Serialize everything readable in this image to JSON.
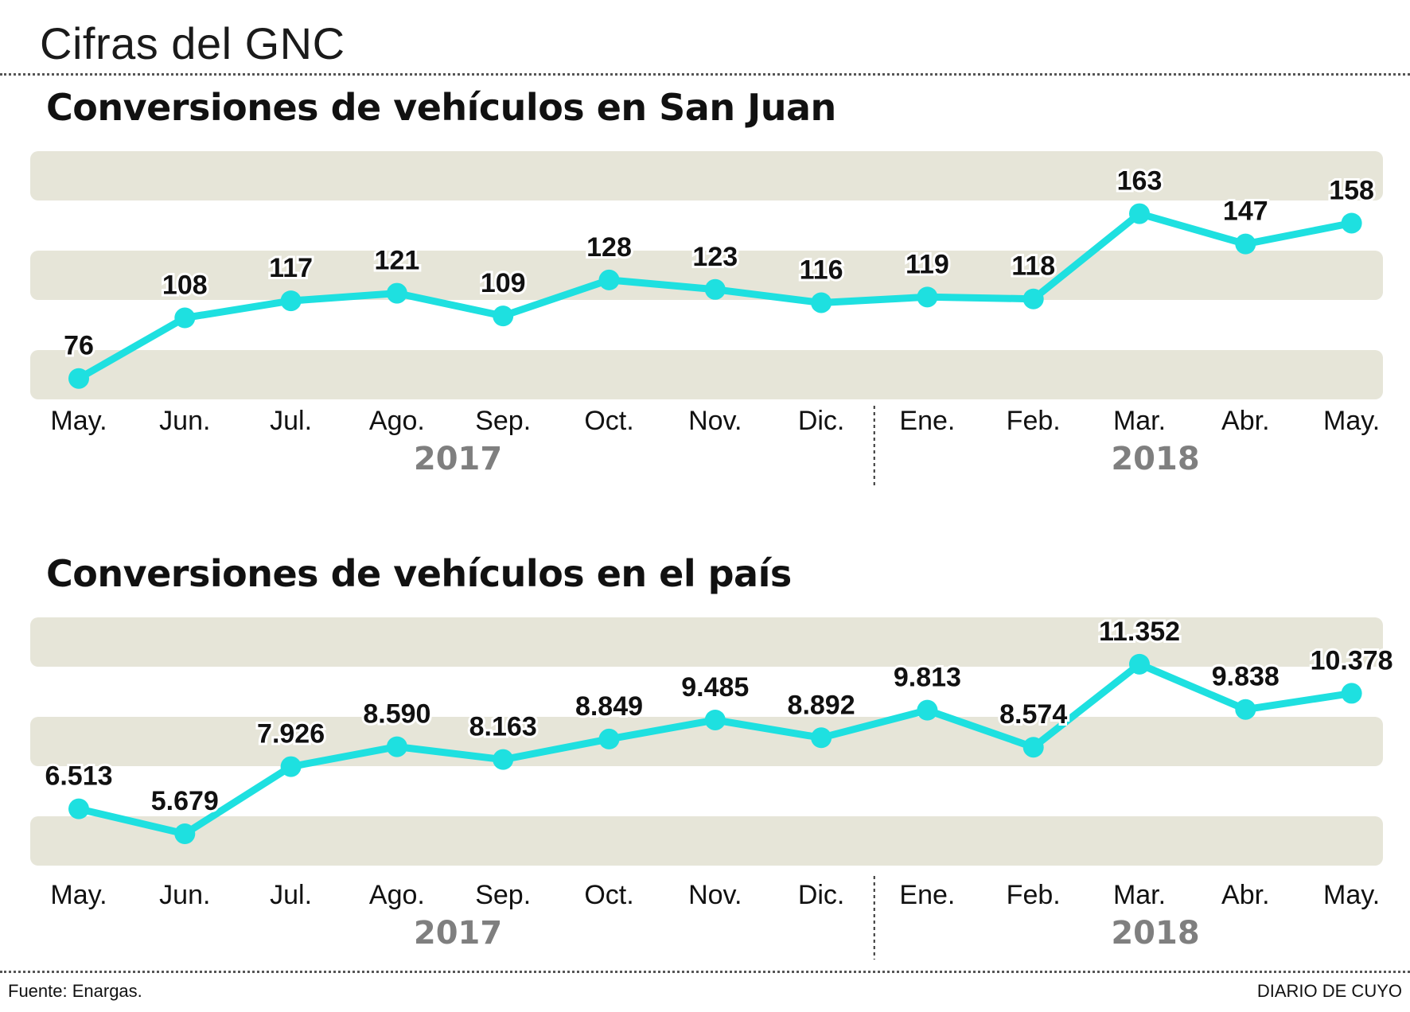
{
  "page": {
    "title": "Cifras del GNC",
    "source": "Fuente: Enargas.",
    "publisher": "DIARIO DE CUYO"
  },
  "colors": {
    "line": "#1ee0e0",
    "band": "#e6e5d8",
    "year_label": "#7f7f7f",
    "text": "#111111"
  },
  "chart_data": [
    {
      "type": "line",
      "title": "Conversiones de vehículos en San Juan",
      "categories": [
        "May.",
        "Jun.",
        "Jul.",
        "Ago.",
        "Sep.",
        "Oct.",
        "Nov.",
        "Dic.",
        "Ene.",
        "Feb.",
        "Mar.",
        "Abr.",
        "May."
      ],
      "years": [
        {
          "label": "2017",
          "from": 0,
          "to": 7
        },
        {
          "label": "2018",
          "from": 8,
          "to": 12
        }
      ],
      "series": [
        {
          "values": [
            76,
            108,
            117,
            121,
            109,
            128,
            123,
            116,
            119,
            118,
            163,
            147,
            158
          ]
        }
      ],
      "value_labels": [
        "76",
        "108",
        "117",
        "121",
        "109",
        "128",
        "123",
        "116",
        "119",
        "118",
        "163",
        "147",
        "158"
      ],
      "ylim": [
        70,
        175
      ]
    },
    {
      "type": "line",
      "title": "Conversiones de vehículos en el país",
      "categories": [
        "May.",
        "Jun.",
        "Jul.",
        "Ago.",
        "Sep.",
        "Oct.",
        "Nov.",
        "Dic.",
        "Ene.",
        "Feb.",
        "Mar.",
        "Abr.",
        "May."
      ],
      "years": [
        {
          "label": "2017",
          "from": 0,
          "to": 7
        },
        {
          "label": "2018",
          "from": 8,
          "to": 12
        }
      ],
      "series": [
        {
          "values": [
            6513,
            5679,
            7926,
            8590,
            8163,
            8849,
            9485,
            8892,
            9813,
            8574,
            11352,
            9838,
            10378
          ]
        }
      ],
      "value_labels": [
        "6.513",
        "5.679",
        "7.926",
        "8.590",
        "8.163",
        "8.849",
        "9.485",
        "8.892",
        "9.813",
        "8.574",
        "11.352",
        "9.838",
        "10.378"
      ],
      "ylim": [
        5200,
        11800
      ]
    }
  ]
}
